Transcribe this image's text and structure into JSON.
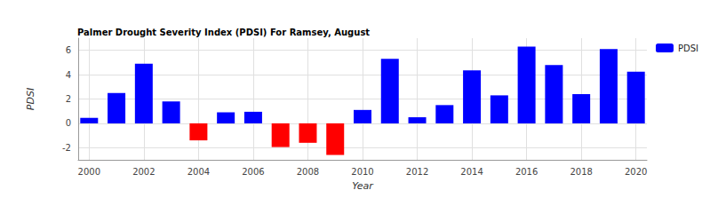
{
  "chart_data": {
    "type": "bar",
    "title": "Palmer Drought Severity Index (PDSI) For Ramsey, August",
    "x_label": "Year",
    "y_label": "PDSI",
    "x": [
      2000,
      2001,
      2002,
      2003,
      2004,
      2005,
      2006,
      2007,
      2008,
      2009,
      2010,
      2011,
      2012,
      2013,
      2014,
      2015,
      2016,
      2017,
      2018,
      2019,
      2020
    ],
    "series": [
      {
        "name": "PDSI",
        "color": "#0000ff",
        "values": [
          0.45,
          2.5,
          4.9,
          1.8,
          -1.4,
          0.9,
          0.95,
          -1.95,
          -1.6,
          -2.6,
          1.1,
          5.3,
          0.5,
          1.5,
          4.35,
          2.3,
          6.3,
          4.8,
          2.4,
          6.1,
          4.25
        ],
        "colors": [
          "#0000ff",
          "#0000ff",
          "#0000ff",
          "#0000ff",
          "#ff0000",
          "#0000ff",
          "#0000ff",
          "#ff0000",
          "#ff0000",
          "#ff0000",
          "#0000ff",
          "#0000ff",
          "#0000ff",
          "#0000ff",
          "#0000ff",
          "#0000ff",
          "#0000ff",
          "#0000ff",
          "#0000ff",
          "#0000ff",
          "#0000ff"
        ]
      }
    ],
    "xlim": [
      1999.6,
      2020.4
    ],
    "xticks": [
      2000,
      2002,
      2004,
      2006,
      2008,
      2010,
      2012,
      2014,
      2016,
      2018,
      2020
    ],
    "ylim": [
      -3,
      7
    ],
    "yticks": [
      -2,
      0,
      2,
      4,
      6
    ],
    "grid": true,
    "legend": "top-right"
  }
}
